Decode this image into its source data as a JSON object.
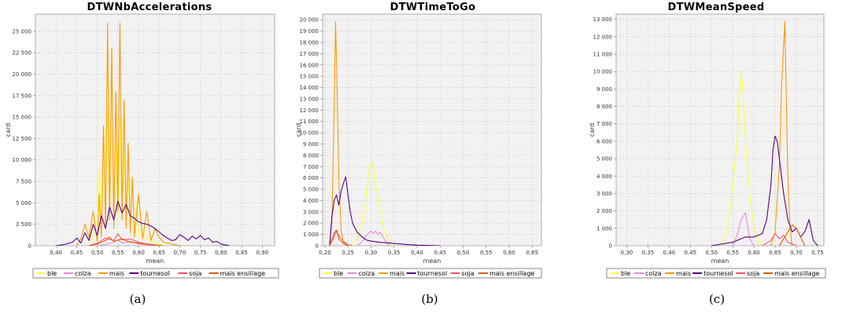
{
  "chart_data": [
    {
      "type": "line",
      "title": "DTWNbAccelerations",
      "xlabel": "mean",
      "ylabel": "card",
      "xlim": [
        0.35,
        0.93
      ],
      "ylim": [
        0,
        27000
      ],
      "xticks": [
        "0,40",
        "0,45",
        "0,50",
        "0,55",
        "0,60",
        "0,65",
        "0,70",
        "0,75",
        "0,80",
        "0,85",
        "0,90"
      ],
      "xtick_values": [
        0.4,
        0.45,
        0.5,
        0.55,
        0.6,
        0.65,
        0.7,
        0.75,
        0.8,
        0.85,
        0.9
      ],
      "yticks": [
        "0",
        "2 500",
        "5 000",
        "7 500",
        "10 000",
        "12 500",
        "15 000",
        "17 500",
        "20 000",
        "22 500",
        "25 000"
      ],
      "ytick_values": [
        0,
        2500,
        5000,
        7500,
        10000,
        12500,
        15000,
        17500,
        20000,
        22500,
        25000
      ],
      "grid": true,
      "legend": "bottom",
      "caption": "(a)",
      "series": [
        {
          "name": "ble",
          "color": "#ffff33",
          "x": [
            0.48,
            0.49,
            0.5,
            0.505,
            0.51,
            0.515,
            0.52,
            0.525,
            0.53,
            0.535,
            0.54,
            0.545,
            0.55,
            0.555,
            0.56,
            0.565,
            0.57,
            0.575,
            0.58,
            0.585,
            0.59,
            0.595,
            0.6,
            0.61,
            0.62,
            0.63,
            0.64,
            0.65,
            0.66
          ],
          "y": [
            200,
            1200,
            3000,
            9000,
            2000,
            14000,
            4000,
            17000,
            3000,
            23000,
            5000,
            12000,
            3000,
            15000,
            4000,
            11000,
            2500,
            8000,
            2000,
            7500,
            1500,
            5000,
            1200,
            2000,
            800,
            600,
            400,
            200,
            0
          ]
        },
        {
          "name": "colza",
          "color": "#ee88dd",
          "x": [
            0.5,
            0.52,
            0.54,
            0.55,
            0.56,
            0.58,
            0.6,
            0.62,
            0.64
          ],
          "y": [
            0,
            150,
            400,
            700,
            300,
            500,
            200,
            100,
            0
          ]
        },
        {
          "name": "mais",
          "color": "#ff9900",
          "x": [
            0.45,
            0.46,
            0.47,
            0.48,
            0.49,
            0.5,
            0.505,
            0.51,
            0.515,
            0.52,
            0.525,
            0.53,
            0.535,
            0.54,
            0.545,
            0.55,
            0.555,
            0.56,
            0.565,
            0.57,
            0.575,
            0.58,
            0.585,
            0.59,
            0.6,
            0.61,
            0.62,
            0.63,
            0.64,
            0.65,
            0.66,
            0.68,
            0.7
          ],
          "y": [
            0,
            800,
            2500,
            1000,
            4000,
            500,
            6000,
            1000,
            14000,
            2000,
            26000,
            3000,
            23000,
            2000,
            18000,
            4000,
            26000,
            3000,
            17000,
            2000,
            12000,
            1500,
            8000,
            1000,
            6000,
            800,
            4000,
            600,
            2000,
            1000,
            400,
            200,
            0
          ]
        },
        {
          "name": "tournesol",
          "color": "#5a0080",
          "x": [
            0.4,
            0.42,
            0.44,
            0.45,
            0.46,
            0.47,
            0.48,
            0.49,
            0.5,
            0.51,
            0.52,
            0.53,
            0.54,
            0.55,
            0.56,
            0.57,
            0.58,
            0.59,
            0.6,
            0.61,
            0.62,
            0.63,
            0.64,
            0.65,
            0.66,
            0.67,
            0.68,
            0.69,
            0.7,
            0.71,
            0.72,
            0.73,
            0.74,
            0.75,
            0.76,
            0.77,
            0.78,
            0.79,
            0.8,
            0.82
          ],
          "y": [
            0,
            150,
            400,
            900,
            300,
            1500,
            600,
            2500,
            1200,
            3500,
            2000,
            4500,
            3000,
            5200,
            3800,
            4800,
            3500,
            3200,
            2800,
            2600,
            2500,
            2300,
            2000,
            1600,
            1200,
            900,
            600,
            700,
            1300,
            1000,
            600,
            1100,
            800,
            1200,
            700,
            900,
            400,
            500,
            200,
            0
          ]
        },
        {
          "name": "soja",
          "color": "#ff5566",
          "x": [
            0.48,
            0.5,
            0.52,
            0.54,
            0.55,
            0.56,
            0.58,
            0.6,
            0.62,
            0.64
          ],
          "y": [
            0,
            300,
            900,
            600,
            1400,
            700,
            800,
            400,
            200,
            0
          ]
        },
        {
          "name": "mais ensillage",
          "color": "#e05a00",
          "x": [
            0.48,
            0.5,
            0.52,
            0.53,
            0.54,
            0.56,
            0.58,
            0.6,
            0.62,
            0.64,
            0.66
          ],
          "y": [
            0,
            200,
            600,
            1000,
            500,
            800,
            400,
            300,
            200,
            100,
            0
          ]
        }
      ]
    },
    {
      "type": "line",
      "title": "DTWTimeToGo",
      "xlabel": "mean",
      "ylabel": "card",
      "xlim": [
        0.195,
        0.67
      ],
      "ylim": [
        0,
        20500
      ],
      "xticks": [
        "0,20",
        "0,25",
        "0,30",
        "0,35",
        "0,40",
        "0,45",
        "0,50",
        "0,55",
        "0,60",
        "0,65"
      ],
      "xtick_values": [
        0.2,
        0.25,
        0.3,
        0.35,
        0.4,
        0.45,
        0.5,
        0.55,
        0.6,
        0.65
      ],
      "yticks": [
        "0",
        "1 000",
        "2 000",
        "3 000",
        "4 000",
        "5 000",
        "6 000",
        "7 000",
        "8 000",
        "9 000",
        "10 000",
        "11 000",
        "12 000",
        "13 000",
        "14 000",
        "15 000",
        "16 000",
        "17 000",
        "18 000",
        "19 000",
        "20 000"
      ],
      "ytick_values": [
        0,
        1000,
        2000,
        3000,
        4000,
        5000,
        6000,
        7000,
        8000,
        9000,
        10000,
        11000,
        12000,
        13000,
        14000,
        15000,
        16000,
        17000,
        18000,
        19000,
        20000
      ],
      "grid": true,
      "legend": "bottom",
      "caption": "(b)",
      "series": [
        {
          "name": "ble",
          "color": "#ffff33",
          "x": [
            0.26,
            0.27,
            0.28,
            0.29,
            0.295,
            0.3,
            0.305,
            0.31,
            0.32,
            0.33,
            0.34,
            0.35
          ],
          "y": [
            0,
            600,
            2000,
            4500,
            6500,
            7300,
            6800,
            5500,
            3000,
            1200,
            300,
            0
          ]
        },
        {
          "name": "colza",
          "color": "#ee88dd",
          "x": [
            0.27,
            0.28,
            0.29,
            0.3,
            0.305,
            0.31,
            0.315,
            0.32,
            0.33,
            0.34
          ],
          "y": [
            0,
            300,
            900,
            1300,
            1100,
            1300,
            1000,
            1200,
            500,
            0
          ]
        },
        {
          "name": "mais",
          "color": "#ff9900",
          "x": [
            0.21,
            0.215,
            0.22,
            0.223,
            0.226,
            0.23,
            0.235,
            0.24,
            0.25
          ],
          "y": [
            0,
            2000,
            12000,
            19800,
            15000,
            6000,
            1500,
            300,
            0
          ]
        },
        {
          "name": "tournesol",
          "color": "#5a0080",
          "x": [
            0.21,
            0.215,
            0.22,
            0.225,
            0.23,
            0.235,
            0.24,
            0.245,
            0.25,
            0.255,
            0.26,
            0.27,
            0.28,
            0.29,
            0.3,
            0.32,
            0.35,
            0.38,
            0.4,
            0.45
          ],
          "y": [
            0,
            2500,
            4000,
            4500,
            3600,
            4800,
            5500,
            6100,
            4500,
            3000,
            2000,
            1200,
            800,
            500,
            400,
            300,
            200,
            100,
            50,
            0
          ]
        },
        {
          "name": "soja",
          "color": "#ff5566",
          "x": [
            0.21,
            0.22,
            0.225,
            0.23,
            0.24,
            0.25,
            0.26
          ],
          "y": [
            0,
            800,
            1300,
            900,
            400,
            100,
            0
          ]
        },
        {
          "name": "mais ensillage",
          "color": "#e05a00",
          "x": [
            0.21,
            0.22,
            0.225,
            0.23,
            0.24,
            0.25
          ],
          "y": [
            0,
            1100,
            1400,
            600,
            200,
            0
          ]
        }
      ]
    },
    {
      "type": "line",
      "title": "DTWMeanSpeed",
      "xlabel": "mean",
      "ylabel": "card",
      "xlim": [
        0.275,
        0.765
      ],
      "ylim": [
        0,
        13300
      ],
      "xticks": [
        "0,30",
        "0,35",
        "0,40",
        "0,45",
        "0,50",
        "0,55",
        "0,60",
        "0,65",
        "0,70",
        "0,75"
      ],
      "xtick_values": [
        0.3,
        0.35,
        0.4,
        0.45,
        0.5,
        0.55,
        0.6,
        0.65,
        0.7,
        0.75
      ],
      "yticks": [
        "0",
        "1 000",
        "2 000",
        "3 000",
        "4 000",
        "5 000",
        "6 000",
        "7 000",
        "8 000",
        "9 000",
        "10 000",
        "11 000",
        "12 000",
        "13 000"
      ],
      "ytick_values": [
        0,
        1000,
        2000,
        3000,
        4000,
        5000,
        6000,
        7000,
        8000,
        9000,
        10000,
        11000,
        12000,
        13000
      ],
      "grid": true,
      "legend": "bottom",
      "caption": "(c)",
      "series": [
        {
          "name": "ble",
          "color": "#ffff33",
          "x": [
            0.52,
            0.53,
            0.54,
            0.55,
            0.56,
            0.565,
            0.57,
            0.575,
            0.58,
            0.59,
            0.6,
            0.61,
            0.62
          ],
          "y": [
            0,
            300,
            1200,
            3500,
            6000,
            8500,
            10000,
            8500,
            6000,
            3000,
            1000,
            300,
            0
          ]
        },
        {
          "name": "colza",
          "color": "#ee88dd",
          "x": [
            0.55,
            0.56,
            0.57,
            0.58,
            0.585,
            0.59,
            0.6
          ],
          "y": [
            0,
            600,
            1500,
            1900,
            1200,
            400,
            0
          ]
        },
        {
          "name": "mais",
          "color": "#ff9900",
          "x": [
            0.64,
            0.65,
            0.66,
            0.665,
            0.67,
            0.673,
            0.676,
            0.68,
            0.685,
            0.69
          ],
          "y": [
            0,
            800,
            4500,
            9000,
            11500,
            12900,
            9000,
            4000,
            1000,
            0
          ]
        },
        {
          "name": "tournesol",
          "color": "#5a0080",
          "x": [
            0.5,
            0.55,
            0.58,
            0.6,
            0.62,
            0.63,
            0.64,
            0.645,
            0.65,
            0.655,
            0.66,
            0.67,
            0.68,
            0.69,
            0.7,
            0.71,
            0.72,
            0.73,
            0.735,
            0.74,
            0.75
          ],
          "y": [
            0,
            200,
            500,
            500,
            700,
            1500,
            3500,
            5500,
            6300,
            6000,
            5000,
            3000,
            1500,
            800,
            1000,
            500,
            800,
            1500,
            900,
            300,
            0
          ]
        },
        {
          "name": "soja",
          "color": "#ff5566",
          "x": [
            0.62,
            0.64,
            0.65,
            0.66,
            0.67,
            0.68,
            0.7
          ],
          "y": [
            0,
            300,
            700,
            400,
            600,
            200,
            0
          ]
        },
        {
          "name": "mais ensillage",
          "color": "#e05a00",
          "x": [
            0.66,
            0.67,
            0.68,
            0.69,
            0.7,
            0.71,
            0.72
          ],
          "y": [
            0,
            400,
            800,
            1200,
            1000,
            500,
            0
          ]
        }
      ]
    }
  ]
}
